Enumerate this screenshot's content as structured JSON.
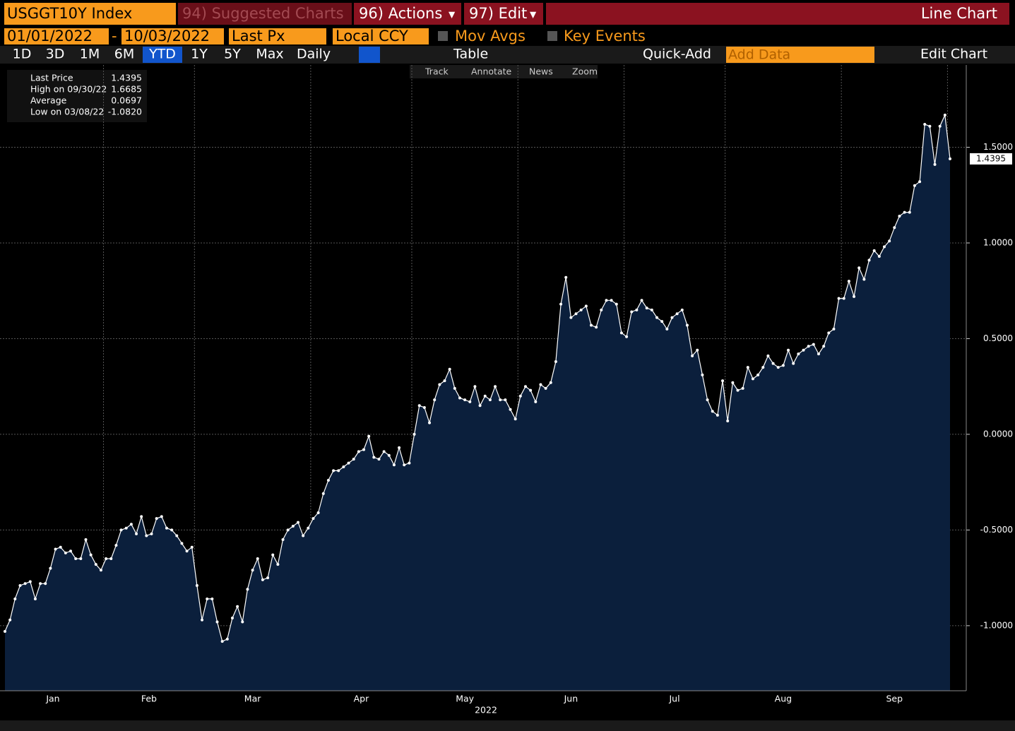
{
  "ui": {
    "ticker": "USGGT10Y Index",
    "suggested": "94) Suggested Charts",
    "actions": "96) Actions",
    "edit": "97) Edit",
    "chart_kind": "Line Chart",
    "date_from": "01/01/2022",
    "date_to": "10/03/2022",
    "field": "Last Px",
    "currency": "Local CCY",
    "mov_avgs": "Mov Avgs",
    "key_events": "Key Events",
    "ranges": [
      "1D",
      "3D",
      "1M",
      "6M",
      "YTD",
      "1Y",
      "5Y",
      "Max"
    ],
    "period": "Daily",
    "table": "Table",
    "quick_add": "Quick-Add",
    "add_data": "Add Data",
    "edit_chart": "Edit Chart",
    "tools": [
      "Track",
      "Annotate",
      "News",
      "Zoom"
    ],
    "legend": [
      {
        "label": "Last Price",
        "value": "1.4395"
      },
      {
        "label": "High on 09/30/22",
        "value": "1.6685"
      },
      {
        "label": "Average",
        "value": "0.0697"
      },
      {
        "label": "Low on 03/08/22",
        "value": "-1.0820"
      }
    ]
  },
  "chart_data": {
    "type": "line",
    "color": "#ffffff",
    "area_color": "#0b1f3c",
    "x_title": "2022",
    "months": [
      {
        "name": "Jan",
        "values": [
          -1.03,
          -0.97,
          -0.86,
          -0.79,
          -0.78,
          -0.77,
          -0.86,
          -0.78,
          -0.78,
          -0.7,
          -0.6,
          -0.59,
          -0.62,
          -0.61,
          -0.65,
          -0.65,
          -0.55,
          -0.63,
          -0.68,
          -0.71
        ]
      },
      {
        "name": "Feb",
        "values": [
          -0.65,
          -0.65,
          -0.58,
          -0.5,
          -0.49,
          -0.47,
          -0.52,
          -0.43,
          -0.53,
          -0.52,
          -0.44,
          -0.43,
          -0.49,
          -0.5,
          -0.53,
          -0.57,
          -0.61,
          -0.59
        ]
      },
      {
        "name": "Mar",
        "values": [
          -0.79,
          -0.97,
          -0.86,
          -0.86,
          -0.98,
          -1.082,
          -1.07,
          -0.96,
          -0.9,
          -0.98,
          -0.81,
          -0.71,
          -0.65,
          -0.76,
          -0.75,
          -0.63,
          -0.68,
          -0.55,
          -0.5,
          -0.48,
          -0.46,
          -0.53,
          -0.49
        ]
      },
      {
        "name": "Apr",
        "values": [
          -0.44,
          -0.41,
          -0.31,
          -0.24,
          -0.19,
          -0.19,
          -0.17,
          -0.15,
          -0.13,
          -0.09,
          -0.08,
          -0.01,
          -0.12,
          -0.13,
          -0.09,
          -0.11,
          -0.16,
          -0.07,
          -0.16,
          -0.15
        ]
      },
      {
        "name": "May",
        "values": [
          0.0,
          0.15,
          0.14,
          0.06,
          0.18,
          0.26,
          0.28,
          0.34,
          0.24,
          0.19,
          0.18,
          0.17,
          0.25,
          0.15,
          0.2,
          0.18,
          0.25,
          0.18,
          0.18,
          0.13,
          0.08
        ]
      },
      {
        "name": "Jun",
        "values": [
          0.2,
          0.25,
          0.23,
          0.17,
          0.26,
          0.24,
          0.27,
          0.38,
          0.68,
          0.82,
          0.61,
          0.63,
          0.65,
          0.67,
          0.57,
          0.56,
          0.65,
          0.7,
          0.7,
          0.68,
          0.53
        ]
      },
      {
        "name": "Jul",
        "values": [
          0.51,
          0.64,
          0.65,
          0.7,
          0.66,
          0.65,
          0.61,
          0.59,
          0.55,
          0.61,
          0.63,
          0.65,
          0.57,
          0.41,
          0.44,
          0.31,
          0.18,
          0.12,
          0.1,
          0.28
        ]
      },
      {
        "name": "Aug",
        "values": [
          0.07,
          0.27,
          0.23,
          0.24,
          0.35,
          0.29,
          0.31,
          0.35,
          0.41,
          0.37,
          0.35,
          0.36,
          0.44,
          0.37,
          0.42,
          0.44,
          0.46,
          0.47,
          0.42,
          0.46,
          0.53,
          0.55,
          0.71
        ]
      },
      {
        "name": "Sep",
        "values": [
          0.71,
          0.8,
          0.72,
          0.87,
          0.81,
          0.91,
          0.96,
          0.93,
          0.98,
          1.01,
          1.08,
          1.14,
          1.16,
          1.16,
          1.3,
          1.32,
          1.62,
          1.61,
          1.41,
          1.61,
          1.6685
        ]
      },
      {
        "name": null,
        "values": [
          1.4395
        ]
      }
    ],
    "ylim": [
      -1.34,
      1.93
    ],
    "yticks": [
      {
        "value": -1,
        "label": "-1.0000"
      },
      {
        "value": -0.5,
        "label": "-0.5000"
      },
      {
        "value": 0,
        "label": "0.0000"
      },
      {
        "value": 0.5,
        "label": "0.5000"
      },
      {
        "value": 1,
        "label": "1.0000"
      },
      {
        "value": 1.5,
        "label": "1.5000"
      }
    ],
    "grid": true
  }
}
